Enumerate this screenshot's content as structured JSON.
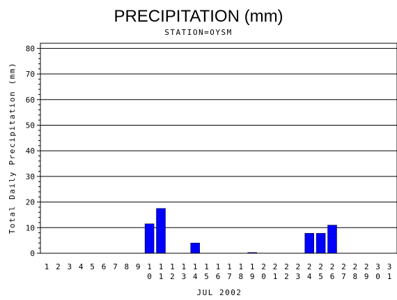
{
  "chart_data": {
    "type": "bar",
    "title": "PRECIPITATION (mm)",
    "subtitle": "STATION=OYSM",
    "xlabel": "JUL 2002",
    "ylabel": "Total Daily Precipitation (mm)",
    "ylim": [
      0,
      82
    ],
    "yticks": [
      0,
      10,
      20,
      30,
      40,
      50,
      60,
      70,
      80
    ],
    "grid": true,
    "bar_color": "#0000ff",
    "categories": [
      "1",
      "2",
      "3",
      "4",
      "5",
      "6",
      "7",
      "8",
      "9",
      "10",
      "11",
      "12",
      "13",
      "14",
      "15",
      "16",
      "17",
      "18",
      "19",
      "20",
      "21",
      "22",
      "23",
      "24",
      "25",
      "26",
      "27",
      "28",
      "29",
      "30",
      "31"
    ],
    "values": [
      0,
      0,
      0,
      0,
      0,
      0,
      0,
      0,
      0,
      11.5,
      17.5,
      0,
      0,
      4.0,
      0,
      0,
      0,
      0,
      0.3,
      0,
      0,
      0,
      0,
      7.8,
      7.8,
      11.0,
      0,
      0,
      0,
      0,
      0
    ]
  }
}
